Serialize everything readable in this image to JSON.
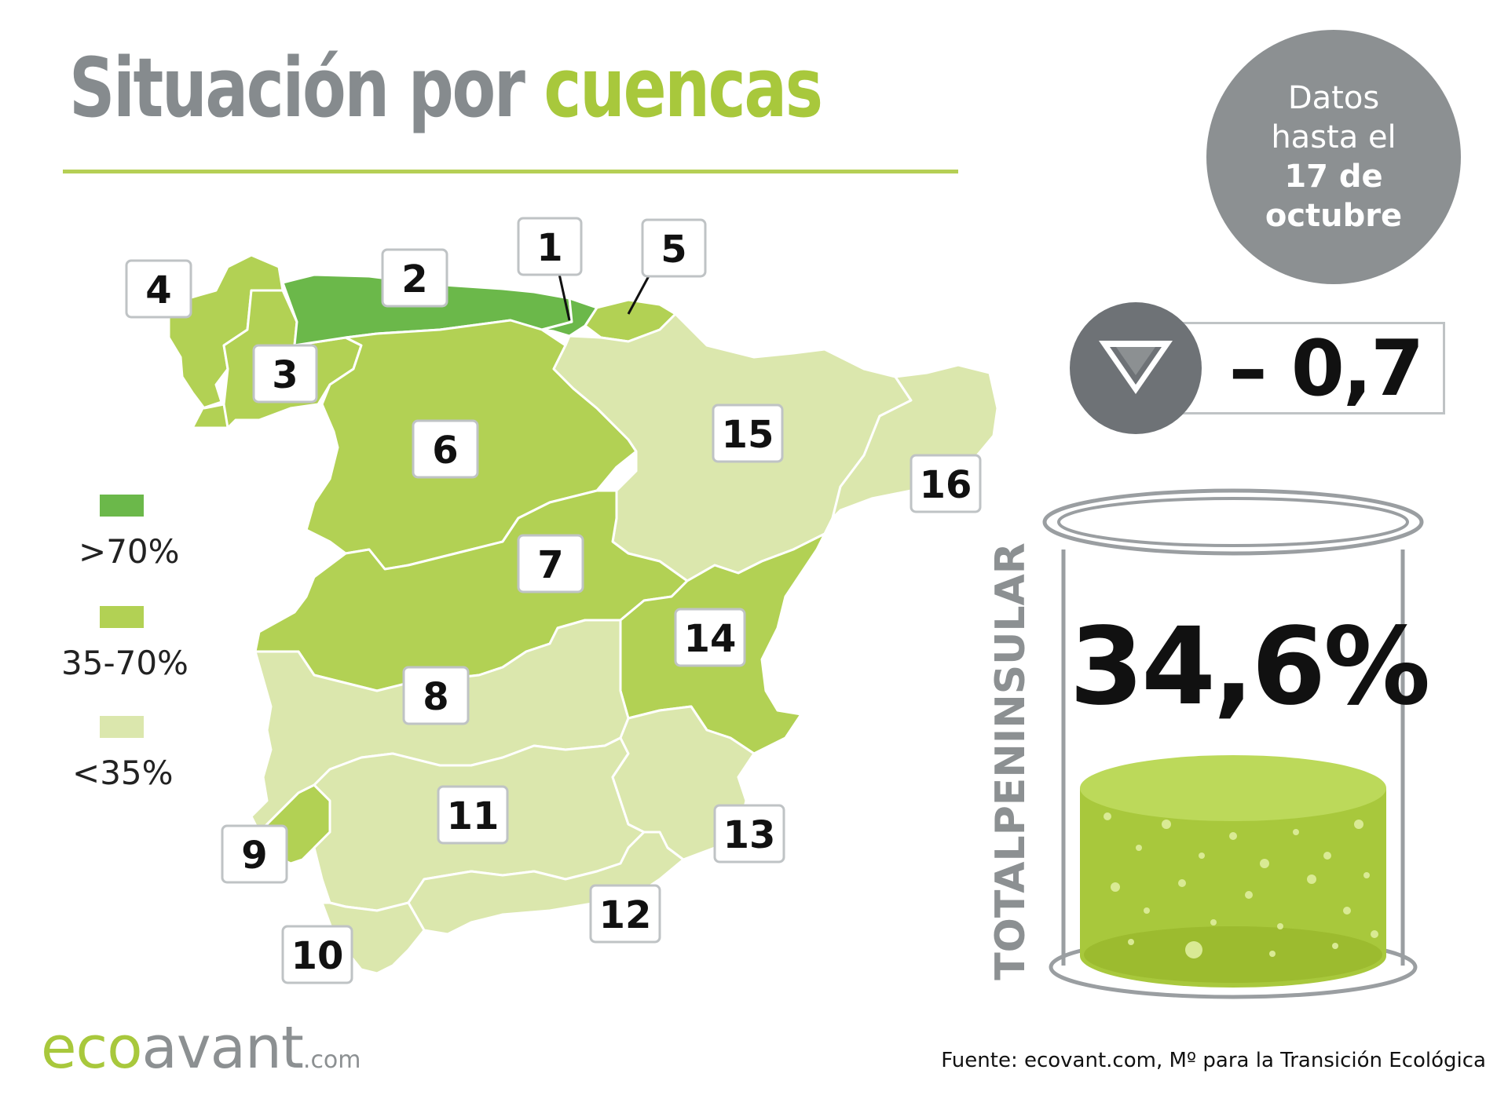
{
  "title": {
    "part1": "Situación por",
    "part2": "cuencas"
  },
  "date_badge": {
    "line1": "Datos",
    "line2": "hasta el",
    "line3": "17 de",
    "line4": "octubre"
  },
  "weekly_change": {
    "value": "– 0,7",
    "direction": "down",
    "icon": "down-triangle-icon"
  },
  "total": {
    "label": "TOTALPENINSULAR",
    "value": "34,6%"
  },
  "legend": [
    {
      "label": ">70%",
      "color": "#6bb84a"
    },
    {
      "label": "35-70%",
      "color": "#b2d154"
    },
    {
      "label": "<35%",
      "color": "#dbe7ad"
    }
  ],
  "basins": [
    {
      "number": "1",
      "category": ">70%"
    },
    {
      "number": "2",
      "category": ">70%"
    },
    {
      "number": "3",
      "category": "35-70%"
    },
    {
      "number": "4",
      "category": "35-70%"
    },
    {
      "number": "5",
      "category": "35-70%"
    },
    {
      "number": "6",
      "category": "35-70%"
    },
    {
      "number": "7",
      "category": "35-70%"
    },
    {
      "number": "8",
      "category": "<35%"
    },
    {
      "number": "9",
      "category": "35-70%"
    },
    {
      "number": "10",
      "category": "<35%"
    },
    {
      "number": "11",
      "category": "<35%"
    },
    {
      "number": "12",
      "category": "<35%"
    },
    {
      "number": "13",
      "category": "<35%"
    },
    {
      "number": "14",
      "category": "35-70%"
    },
    {
      "number": "15",
      "category": "<35%"
    },
    {
      "number": "16",
      "category": "<35%"
    }
  ],
  "logo": {
    "eco": "eco",
    "avant": "avant",
    "com": ".com"
  },
  "source": "Fuente: ecovant.com, Mº para la Transición Ecológica"
}
